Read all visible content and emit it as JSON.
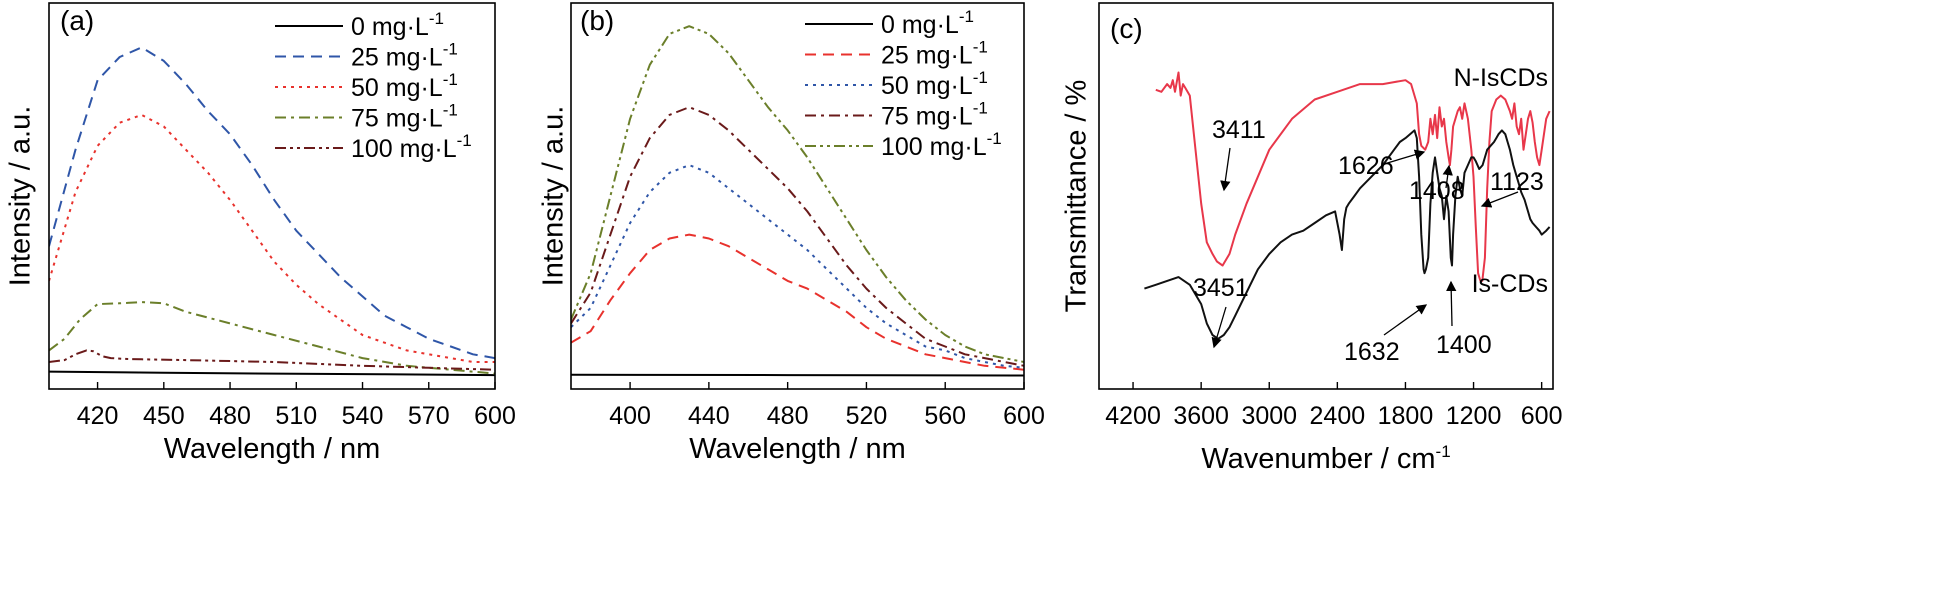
{
  "chart_data": [
    {
      "panel": "(a)",
      "type": "line",
      "xlabel": "Wavelength / nm",
      "ylabel": "Intensity / a.u.",
      "xlim": [
        398,
        600
      ],
      "ylim": [
        0,
        1
      ],
      "y_ticks_labeled": false,
      "xticks": [
        420,
        450,
        480,
        510,
        540,
        570,
        600
      ],
      "legend_position": "top-right",
      "series": [
        {
          "name": "0 mg·L",
          "sup": "-1",
          "color": "#000000",
          "dash": "solid",
          "x": [
            398,
            450,
            500,
            550,
            600
          ],
          "y": [
            0.045,
            0.042,
            0.04,
            0.038,
            0.036
          ]
        },
        {
          "name": "25 mg·L",
          "sup": "-1",
          "color": "#2f56a8",
          "dash": "dash",
          "x": [
            398,
            410,
            420,
            430,
            440,
            450,
            460,
            470,
            480,
            490,
            500,
            510,
            520,
            530,
            540,
            550,
            560,
            570,
            580,
            590,
            600
          ],
          "y": [
            0.37,
            0.62,
            0.8,
            0.86,
            0.885,
            0.85,
            0.79,
            0.72,
            0.66,
            0.58,
            0.49,
            0.41,
            0.35,
            0.29,
            0.24,
            0.19,
            0.16,
            0.13,
            0.11,
            0.09,
            0.08
          ]
        },
        {
          "name": "50 mg·L",
          "sup": "-1",
          "color": "#e8322d",
          "dash": "dot",
          "x": [
            398,
            410,
            420,
            430,
            440,
            450,
            460,
            470,
            480,
            490,
            500,
            510,
            520,
            530,
            540,
            550,
            560,
            570,
            580,
            590,
            600
          ],
          "y": [
            0.28,
            0.51,
            0.63,
            0.69,
            0.71,
            0.68,
            0.62,
            0.56,
            0.49,
            0.41,
            0.33,
            0.27,
            0.22,
            0.18,
            0.14,
            0.12,
            0.1,
            0.09,
            0.08,
            0.07,
            0.07
          ]
        },
        {
          "name": "75 mg·L",
          "sup": "-1",
          "color": "#6b7f2a",
          "dash": "dashdot",
          "x": [
            398,
            405,
            412,
            420,
            430,
            440,
            450,
            460,
            480,
            500,
            520,
            540,
            560,
            580,
            600
          ],
          "y": [
            0.1,
            0.13,
            0.18,
            0.22,
            0.222,
            0.225,
            0.222,
            0.2,
            0.17,
            0.14,
            0.11,
            0.08,
            0.06,
            0.05,
            0.04
          ]
        },
        {
          "name": "100 mg·L",
          "sup": "-1",
          "color": "#6a1a1a",
          "dash": "dashdotdot",
          "x": [
            398,
            405,
            410,
            415,
            418,
            422,
            426,
            432,
            440,
            460,
            500,
            540,
            570,
            600
          ],
          "y": [
            0.07,
            0.075,
            0.09,
            0.1,
            0.098,
            0.085,
            0.08,
            0.078,
            0.077,
            0.075,
            0.07,
            0.06,
            0.055,
            0.05
          ]
        }
      ]
    },
    {
      "panel": "(b)",
      "type": "line",
      "xlabel": "Wavelength / nm",
      "ylabel": "Intensity / a.u.",
      "xlim": [
        370,
        600
      ],
      "ylim": [
        0,
        1
      ],
      "y_ticks_labeled": false,
      "xticks": [
        400,
        440,
        480,
        520,
        560,
        600
      ],
      "legend_position": "top-right",
      "series": [
        {
          "name": "0 mg·L",
          "sup": "-1",
          "color": "#000000",
          "dash": "solid",
          "x": [
            370,
            480,
            600
          ],
          "y": [
            0.037,
            0.036,
            0.035
          ]
        },
        {
          "name": "25 mg·L",
          "sup": "-1",
          "color": "#e8322d",
          "dash": "dash",
          "x": [
            370,
            380,
            390,
            400,
            410,
            420,
            430,
            440,
            450,
            460,
            470,
            480,
            490,
            500,
            510,
            520,
            530,
            540,
            550,
            560,
            570,
            580,
            590,
            600
          ],
          "y": [
            0.12,
            0.15,
            0.23,
            0.3,
            0.36,
            0.39,
            0.4,
            0.39,
            0.37,
            0.34,
            0.31,
            0.28,
            0.26,
            0.23,
            0.2,
            0.16,
            0.13,
            0.11,
            0.09,
            0.08,
            0.07,
            0.06,
            0.055,
            0.05
          ]
        },
        {
          "name": "50 mg·L",
          "sup": "-1",
          "color": "#2f56a8",
          "dash": "dot",
          "x": [
            370,
            380,
            390,
            400,
            410,
            420,
            430,
            440,
            450,
            460,
            470,
            480,
            490,
            500,
            510,
            520,
            530,
            540,
            550,
            560,
            570,
            580,
            590,
            600
          ],
          "y": [
            0.16,
            0.21,
            0.32,
            0.43,
            0.51,
            0.56,
            0.58,
            0.56,
            0.52,
            0.48,
            0.44,
            0.4,
            0.36,
            0.31,
            0.26,
            0.21,
            0.17,
            0.14,
            0.11,
            0.1,
            0.08,
            0.07,
            0.06,
            0.055
          ]
        },
        {
          "name": "75 mg·L",
          "sup": "-1",
          "color": "#6a1a1a",
          "dash": "dashdot",
          "x": [
            370,
            380,
            390,
            400,
            410,
            420,
            430,
            440,
            450,
            460,
            470,
            480,
            490,
            500,
            510,
            520,
            530,
            540,
            550,
            560,
            570,
            580,
            590,
            600
          ],
          "y": [
            0.17,
            0.25,
            0.4,
            0.55,
            0.65,
            0.71,
            0.73,
            0.71,
            0.67,
            0.62,
            0.57,
            0.52,
            0.46,
            0.39,
            0.32,
            0.26,
            0.21,
            0.17,
            0.13,
            0.11,
            0.09,
            0.08,
            0.07,
            0.06
          ]
        },
        {
          "name": "100 mg·L",
          "sup": "-1",
          "color": "#6b7f2a",
          "dash": "dashdotdot",
          "x": [
            370,
            380,
            390,
            400,
            410,
            420,
            430,
            440,
            450,
            460,
            470,
            480,
            490,
            500,
            510,
            520,
            530,
            540,
            550,
            560,
            570,
            580,
            590,
            600
          ],
          "y": [
            0.18,
            0.3,
            0.5,
            0.7,
            0.84,
            0.92,
            0.94,
            0.92,
            0.87,
            0.8,
            0.73,
            0.67,
            0.6,
            0.52,
            0.44,
            0.36,
            0.29,
            0.23,
            0.18,
            0.14,
            0.11,
            0.09,
            0.08,
            0.07
          ]
        }
      ]
    },
    {
      "panel": "(c)",
      "type": "line",
      "xlabel": "Wavenumber / cm",
      "xlabel_sup": "-1",
      "ylabel": "Transmittance / %",
      "xlim": [
        4500,
        500
      ],
      "x_reversed": true,
      "ylim": [
        0,
        1
      ],
      "y_ticks_labeled": false,
      "xticks": [
        4200,
        3600,
        3000,
        2400,
        1800,
        1200,
        600
      ],
      "series": [
        {
          "name": "N-IsCDs",
          "color": "#e8374a",
          "dash": "solid",
          "x": [
            4000,
            3950,
            3900,
            3870,
            3850,
            3830,
            3800,
            3780,
            3760,
            3740,
            3700,
            3650,
            3600,
            3550,
            3500,
            3460,
            3411,
            3350,
            3300,
            3200,
            3100,
            3000,
            2800,
            2600,
            2400,
            2200,
            2000,
            1900,
            1800,
            1750,
            1700,
            1680,
            1660,
            1626,
            1600,
            1580,
            1560,
            1540,
            1520,
            1500,
            1480,
            1460,
            1440,
            1420,
            1408,
            1395,
            1380,
            1360,
            1340,
            1320,
            1300,
            1280,
            1250,
            1220,
            1200,
            1180,
            1160,
            1140,
            1123,
            1100,
            1080,
            1060,
            1040,
            1000,
            960,
            920,
            880,
            860,
            840,
            820,
            800,
            780,
            760,
            740,
            720,
            700,
            680,
            660,
            640,
            620,
            600,
            560,
            530
          ],
          "y": [
            0.775,
            0.77,
            0.79,
            0.78,
            0.8,
            0.77,
            0.82,
            0.76,
            0.79,
            0.78,
            0.76,
            0.62,
            0.48,
            0.38,
            0.35,
            0.33,
            0.32,
            0.35,
            0.4,
            0.48,
            0.55,
            0.62,
            0.7,
            0.75,
            0.77,
            0.79,
            0.79,
            0.795,
            0.8,
            0.79,
            0.74,
            0.66,
            0.63,
            0.62,
            0.64,
            0.7,
            0.66,
            0.71,
            0.65,
            0.73,
            0.68,
            0.7,
            0.64,
            0.6,
            0.58,
            0.62,
            0.68,
            0.7,
            0.72,
            0.73,
            0.7,
            0.74,
            0.7,
            0.62,
            0.55,
            0.42,
            0.3,
            0.28,
            0.28,
            0.34,
            0.52,
            0.64,
            0.72,
            0.75,
            0.76,
            0.75,
            0.72,
            0.7,
            0.74,
            0.68,
            0.66,
            0.7,
            0.62,
            0.66,
            0.7,
            0.72,
            0.69,
            0.64,
            0.6,
            0.58,
            0.62,
            0.7,
            0.72
          ]
        },
        {
          "name": "Is-CDs",
          "color": "#111111",
          "dash": "solid",
          "x": [
            4100,
            4000,
            3900,
            3800,
            3700,
            3600,
            3550,
            3500,
            3451,
            3400,
            3350,
            3300,
            3200,
            3100,
            3000,
            2900,
            2800,
            2700,
            2600,
            2500,
            2420,
            2380,
            2360,
            2340,
            2320,
            2300,
            2250,
            2200,
            2100,
            2000,
            1900,
            1850,
            1800,
            1760,
            1720,
            1700,
            1680,
            1660,
            1640,
            1632,
            1620,
            1600,
            1580,
            1560,
            1540,
            1520,
            1500,
            1480,
            1460,
            1440,
            1420,
            1400,
            1390,
            1380,
            1360,
            1340,
            1320,
            1300,
            1280,
            1250,
            1220,
            1200,
            1180,
            1150,
            1120,
            1100,
            1080,
            1050,
            1020,
            1000,
            980,
            950,
            920,
            900,
            880,
            850,
            820,
            800,
            780,
            750,
            720,
            700,
            680,
            650,
            620,
            600,
            560,
            530
          ],
          "y": [
            0.26,
            0.27,
            0.28,
            0.29,
            0.27,
            0.22,
            0.17,
            0.14,
            0.13,
            0.14,
            0.16,
            0.19,
            0.25,
            0.31,
            0.35,
            0.38,
            0.4,
            0.41,
            0.43,
            0.45,
            0.46,
            0.4,
            0.36,
            0.44,
            0.47,
            0.48,
            0.5,
            0.52,
            0.55,
            0.58,
            0.62,
            0.64,
            0.65,
            0.66,
            0.67,
            0.65,
            0.55,
            0.4,
            0.31,
            0.3,
            0.31,
            0.34,
            0.48,
            0.56,
            0.6,
            0.56,
            0.52,
            0.5,
            0.44,
            0.5,
            0.46,
            0.34,
            0.32,
            0.4,
            0.5,
            0.55,
            0.52,
            0.5,
            0.56,
            0.58,
            0.6,
            0.6,
            0.59,
            0.57,
            0.58,
            0.6,
            0.62,
            0.63,
            0.64,
            0.65,
            0.66,
            0.67,
            0.66,
            0.64,
            0.62,
            0.58,
            0.55,
            0.53,
            0.51,
            0.49,
            0.46,
            0.44,
            0.43,
            0.42,
            0.41,
            0.4,
            0.41,
            0.42
          ]
        }
      ],
      "annotations": [
        {
          "text": "3411",
          "target_x": 3411,
          "target_y": 0.32
        },
        {
          "text": "1626",
          "target_x": 1626,
          "target_y": 0.62
        },
        {
          "text": "1408",
          "target_x": 1408,
          "target_y": 0.58
        },
        {
          "text": "1123",
          "target_x": 1123,
          "target_y": 0.28
        },
        {
          "text": "3451",
          "target_x": 3451,
          "target_y": 0.13
        },
        {
          "text": "1632",
          "target_x": 1632,
          "target_y": 0.3
        },
        {
          "text": "1400",
          "target_x": 1400,
          "target_y": 0.34
        }
      ]
    }
  ]
}
